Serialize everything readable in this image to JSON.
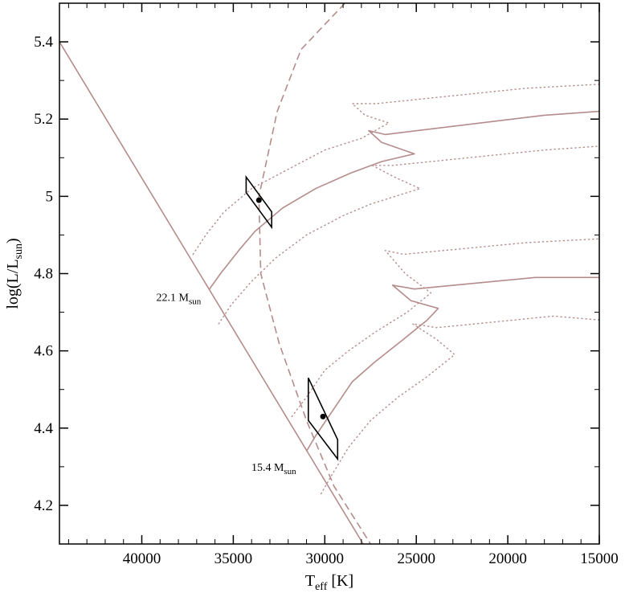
{
  "chart_data": {
    "type": "line",
    "title": "",
    "xlabel": "T",
    "xlabel_sub": "eff",
    "xlabel_unit": " [K]",
    "ylabel": "log(L/L",
    "ylabel_sub": "sun",
    "ylabel_tail": ")",
    "xlim": [
      44500,
      15000
    ],
    "ylim": [
      4.1,
      5.5
    ],
    "x_reversed": true,
    "grid": false,
    "x_ticks": [
      40000,
      35000,
      30000,
      25000,
      20000,
      15000
    ],
    "x_tick_labels": [
      "40000",
      "35000",
      "30000",
      "25000",
      "20000",
      "15000"
    ],
    "y_ticks": [
      4.2,
      4.4,
      4.6,
      4.8,
      5.0,
      5.2,
      5.4
    ],
    "y_tick_labels": [
      "4.2",
      "4.4",
      "4.6",
      "4.8",
      "5",
      "5.2",
      "5.4"
    ],
    "line_color": "#b48c8c",
    "box_color": "#000000",
    "series": [
      {
        "style": "solid",
        "points": [
          [
            44500,
            5.4
          ],
          [
            27900,
            4.1
          ]
        ]
      },
      {
        "style": "dashed",
        "points": [
          [
            28900,
            5.5
          ],
          [
            31300,
            5.38
          ],
          [
            32600,
            5.22
          ],
          [
            33600,
            5.0
          ],
          [
            33500,
            4.8
          ],
          [
            32500,
            4.62
          ],
          [
            31000,
            4.42
          ],
          [
            29500,
            4.25
          ],
          [
            27500,
            4.1
          ]
        ]
      },
      {
        "style": "solid",
        "points": [
          [
            36300,
            4.76
          ],
          [
            35700,
            4.8
          ],
          [
            34700,
            4.86
          ],
          [
            33800,
            4.91
          ],
          [
            32300,
            4.97
          ],
          [
            30500,
            5.02
          ],
          [
            28600,
            5.06
          ],
          [
            26900,
            5.09
          ],
          [
            25100,
            5.11
          ],
          [
            26900,
            5.14
          ],
          [
            27600,
            5.17
          ],
          [
            26700,
            5.16
          ],
          [
            18000,
            5.21
          ],
          [
            15000,
            5.22
          ]
        ]
      },
      {
        "style": "dotted",
        "points": [
          [
            37200,
            4.85
          ],
          [
            36500,
            4.9
          ],
          [
            35500,
            4.96
          ],
          [
            34000,
            5.02
          ],
          [
            32000,
            5.07
          ],
          [
            30000,
            5.12
          ],
          [
            28000,
            5.15
          ],
          [
            26500,
            5.19
          ],
          [
            27800,
            5.21
          ],
          [
            28500,
            5.24
          ],
          [
            27200,
            5.24
          ],
          [
            19000,
            5.28
          ],
          [
            15000,
            5.29
          ]
        ]
      },
      {
        "style": "dotted",
        "points": [
          [
            35800,
            4.67
          ],
          [
            35100,
            4.72
          ],
          [
            34000,
            4.78
          ],
          [
            32700,
            4.84
          ],
          [
            31000,
            4.9
          ],
          [
            29000,
            4.95
          ],
          [
            27500,
            4.98
          ],
          [
            24800,
            5.02
          ],
          [
            26200,
            5.05
          ],
          [
            27400,
            5.08
          ],
          [
            26300,
            5.08
          ],
          [
            18000,
            5.12
          ],
          [
            15000,
            5.13
          ]
        ]
      },
      {
        "style": "solid",
        "points": [
          [
            31000,
            4.34
          ],
          [
            30500,
            4.38
          ],
          [
            29500,
            4.45
          ],
          [
            28500,
            4.52
          ],
          [
            27300,
            4.57
          ],
          [
            25700,
            4.63
          ],
          [
            24400,
            4.68
          ],
          [
            23800,
            4.71
          ],
          [
            25300,
            4.73
          ],
          [
            26300,
            4.77
          ],
          [
            25100,
            4.76
          ],
          [
            18500,
            4.79
          ],
          [
            15000,
            4.79
          ]
        ]
      },
      {
        "style": "dotted",
        "points": [
          [
            31800,
            4.43
          ],
          [
            31000,
            4.48
          ],
          [
            30000,
            4.55
          ],
          [
            28700,
            4.6
          ],
          [
            27200,
            4.65
          ],
          [
            25500,
            4.7
          ],
          [
            24200,
            4.75
          ],
          [
            25600,
            4.8
          ],
          [
            26700,
            4.86
          ],
          [
            25700,
            4.85
          ],
          [
            19000,
            4.88
          ],
          [
            15000,
            4.89
          ]
        ]
      },
      {
        "style": "dotted",
        "points": [
          [
            30200,
            4.23
          ],
          [
            29600,
            4.28
          ],
          [
            28700,
            4.35
          ],
          [
            27500,
            4.42
          ],
          [
            26000,
            4.48
          ],
          [
            24500,
            4.53
          ],
          [
            22900,
            4.59
          ],
          [
            23900,
            4.63
          ],
          [
            25200,
            4.67
          ],
          [
            23900,
            4.66
          ],
          [
            17500,
            4.69
          ],
          [
            15000,
            4.68
          ]
        ]
      }
    ],
    "error_boxes": [
      {
        "center": [
          33600,
          4.99
        ],
        "corners": [
          [
            34300,
            5.05
          ],
          [
            32900,
            4.96
          ],
          [
            32900,
            4.92
          ],
          [
            34300,
            5.01
          ]
        ]
      },
      {
        "center": [
          30100,
          4.43
        ],
        "corners": [
          [
            30900,
            4.53
          ],
          [
            29300,
            4.37
          ],
          [
            29300,
            4.32
          ],
          [
            30900,
            4.42
          ]
        ]
      }
    ],
    "annotations": [
      {
        "label": "22.1 M",
        "sub": "sun",
        "at": [
          36500,
          4.75
        ]
      },
      {
        "label": "15.4 M",
        "sub": "sun",
        "at": [
          31300,
          4.31
        ]
      }
    ]
  }
}
